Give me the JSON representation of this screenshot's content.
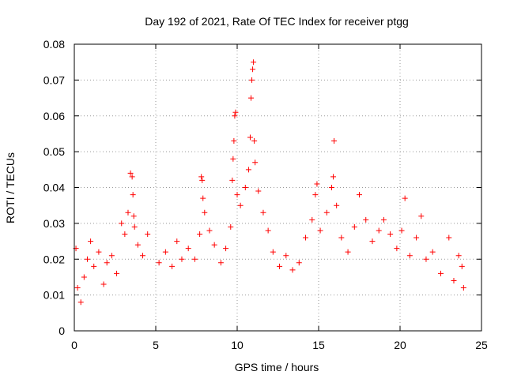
{
  "chart_data": {
    "type": "scatter",
    "title": "Day 192 of 2021, Rate Of TEC Index for receiver ptgg",
    "xlabel": "GPS time / hours",
    "ylabel": "ROTI / TECUs",
    "xlim": [
      0,
      25
    ],
    "ylim": [
      0,
      0.08
    ],
    "x_ticks": [
      0,
      5,
      10,
      15,
      20,
      25
    ],
    "y_ticks": [
      0,
      0.01,
      0.02,
      0.03,
      0.04,
      0.05,
      0.06,
      0.07,
      0.08
    ],
    "x_tick_labels": [
      "0",
      "5",
      "10",
      "15",
      "20",
      "25"
    ],
    "y_tick_labels": [
      "0",
      "0.01",
      "0.02",
      "0.03",
      "0.04",
      "0.05",
      "0.06",
      "0.07",
      "0.08"
    ],
    "grid": true,
    "marker": "+",
    "color": "#ff0000",
    "series": [
      {
        "name": "",
        "points": [
          [
            0.1,
            0.023
          ],
          [
            0.2,
            0.012
          ],
          [
            0.4,
            0.008
          ],
          [
            0.6,
            0.015
          ],
          [
            0.8,
            0.02
          ],
          [
            1.0,
            0.025
          ],
          [
            1.2,
            0.018
          ],
          [
            1.5,
            0.022
          ],
          [
            1.8,
            0.013
          ],
          [
            2.0,
            0.019
          ],
          [
            2.3,
            0.021
          ],
          [
            2.6,
            0.016
          ],
          [
            2.9,
            0.03
          ],
          [
            3.1,
            0.027
          ],
          [
            3.3,
            0.033
          ],
          [
            3.45,
            0.044
          ],
          [
            3.55,
            0.043
          ],
          [
            3.6,
            0.038
          ],
          [
            3.65,
            0.032
          ],
          [
            3.7,
            0.029
          ],
          [
            3.9,
            0.024
          ],
          [
            4.2,
            0.021
          ],
          [
            4.5,
            0.027
          ],
          [
            5.2,
            0.019
          ],
          [
            5.6,
            0.022
          ],
          [
            6.0,
            0.018
          ],
          [
            6.3,
            0.025
          ],
          [
            6.6,
            0.02
          ],
          [
            7.0,
            0.023
          ],
          [
            7.4,
            0.02
          ],
          [
            7.7,
            0.027
          ],
          [
            7.8,
            0.043
          ],
          [
            7.85,
            0.042
          ],
          [
            7.9,
            0.037
          ],
          [
            8.0,
            0.033
          ],
          [
            8.3,
            0.028
          ],
          [
            8.6,
            0.024
          ],
          [
            9.0,
            0.019
          ],
          [
            9.3,
            0.023
          ],
          [
            9.6,
            0.029
          ],
          [
            9.7,
            0.042
          ],
          [
            9.75,
            0.048
          ],
          [
            9.8,
            0.053
          ],
          [
            9.85,
            0.06
          ],
          [
            9.9,
            0.061
          ],
          [
            10.0,
            0.038
          ],
          [
            10.2,
            0.035
          ],
          [
            10.5,
            0.04
          ],
          [
            10.7,
            0.045
          ],
          [
            10.8,
            0.054
          ],
          [
            10.85,
            0.065
          ],
          [
            10.9,
            0.07
          ],
          [
            10.95,
            0.073
          ],
          [
            11.0,
            0.075
          ],
          [
            11.05,
            0.053
          ],
          [
            11.1,
            0.047
          ],
          [
            11.3,
            0.039
          ],
          [
            11.6,
            0.033
          ],
          [
            11.9,
            0.028
          ],
          [
            12.2,
            0.022
          ],
          [
            12.6,
            0.018
          ],
          [
            13.0,
            0.021
          ],
          [
            13.4,
            0.017
          ],
          [
            13.8,
            0.019
          ],
          [
            14.2,
            0.026
          ],
          [
            14.6,
            0.031
          ],
          [
            14.8,
            0.038
          ],
          [
            14.9,
            0.041
          ],
          [
            15.1,
            0.028
          ],
          [
            15.5,
            0.033
          ],
          [
            15.8,
            0.04
          ],
          [
            15.9,
            0.043
          ],
          [
            15.95,
            0.053
          ],
          [
            16.1,
            0.035
          ],
          [
            16.4,
            0.026
          ],
          [
            16.8,
            0.022
          ],
          [
            17.2,
            0.029
          ],
          [
            17.5,
            0.038
          ],
          [
            17.9,
            0.031
          ],
          [
            18.3,
            0.025
          ],
          [
            18.7,
            0.028
          ],
          [
            19.0,
            0.031
          ],
          [
            19.4,
            0.027
          ],
          [
            19.8,
            0.023
          ],
          [
            20.1,
            0.028
          ],
          [
            20.3,
            0.037
          ],
          [
            20.6,
            0.021
          ],
          [
            21.0,
            0.026
          ],
          [
            21.3,
            0.032
          ],
          [
            21.6,
            0.02
          ],
          [
            22.0,
            0.022
          ],
          [
            22.5,
            0.016
          ],
          [
            23.0,
            0.026
          ],
          [
            23.3,
            0.014
          ],
          [
            23.6,
            0.021
          ],
          [
            23.8,
            0.018
          ],
          [
            23.9,
            0.012
          ]
        ]
      }
    ]
  }
}
